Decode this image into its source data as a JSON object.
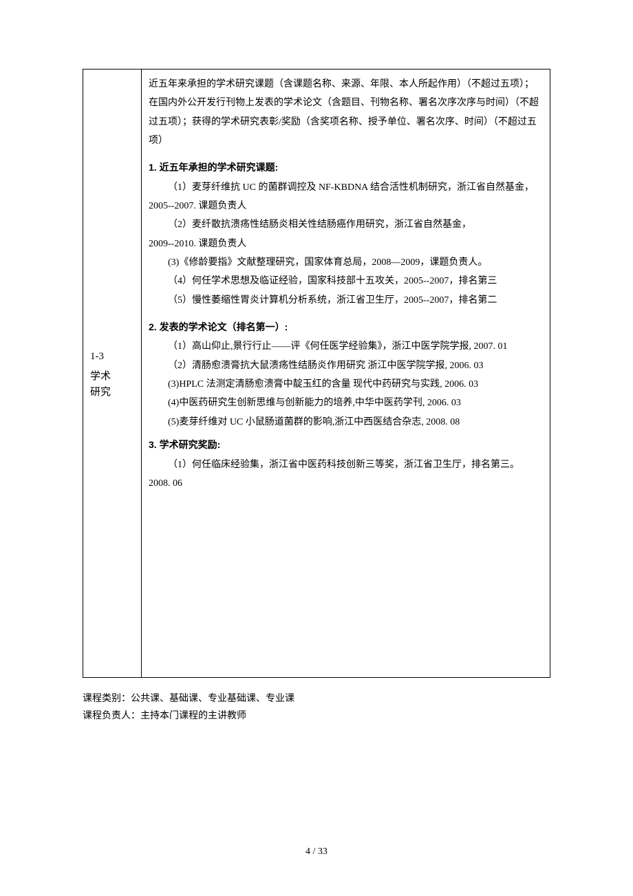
{
  "section": {
    "number": "1-3",
    "title_line1": "学术",
    "title_line2": "研究"
  },
  "intro": "近五年来承担的学术研究课题（含课题名称、来源、年限、本人所起作用）（不超过五项）；在国内外公开发行刊物上发表的学术论文（含题目、刊物名称、署名次序次序与时间）（不超过五项）；获得的学术研究表彰/奖励（含奖项名称、授予单位、署名次序、时间）（不超过五项）",
  "heading1": "1. 近五年承担的学术研究课题:",
  "research": [
    "（1）麦芽纤维抗 UC 的菌群调控及 NF-KBDNA 结合活性机制研究，浙江省自然基金，",
    "2005--2007. 课题负责人",
    "（2）麦纤散抗溃疡性结肠炎相关性结肠癌作用研究，浙江省自然基金，",
    "2009--2010. 课题负责人",
    "(3)《修龄要指》文献整理研究，国家体育总局，2008—2009，课题负责人。",
    "（4）何任学术思想及临证经验，国家科技部十五攻关，2005--2007，排名第三",
    "（5）慢性萎缩性胃炎计算机分析系统，浙江省卫生厅，2005--2007，排名第二"
  ],
  "heading2": "2. 发表的学术论文（排名第一）:",
  "papers": [
    "（1）高山仰止,景行行止——评《何任医学经验集》，浙江中医学院学报, 2007. 01",
    "（2）清肠愈溃膏抗大鼠溃疡性结肠炎作用研究 浙江中医学院学报, 2006. 03",
    "(3)HPLC 法测定清肠愈溃膏中靛玉红的含量 现代中药研究与实践, 2006. 03",
    "(4)中医药研究生创新思维与创新能力的培养,中华中医药学刊, 2006. 03",
    "(5)麦芽纤维对 UC 小鼠肠道菌群的影响,浙江中西医结合杂志, 2008. 08"
  ],
  "heading3": "3. 学术研究奖励:",
  "awards": [
    "（1）何任临床经验集，浙江省中医药科技创新三等奖，浙江省卫生厅，排名第三。",
    "2008. 06"
  ],
  "footnote1": "课程类别：公共课、基础课、专业基础课、专业课",
  "footnote2": "课程负责人：主持本门课程的主讲教师",
  "page_number": "4 / 33"
}
